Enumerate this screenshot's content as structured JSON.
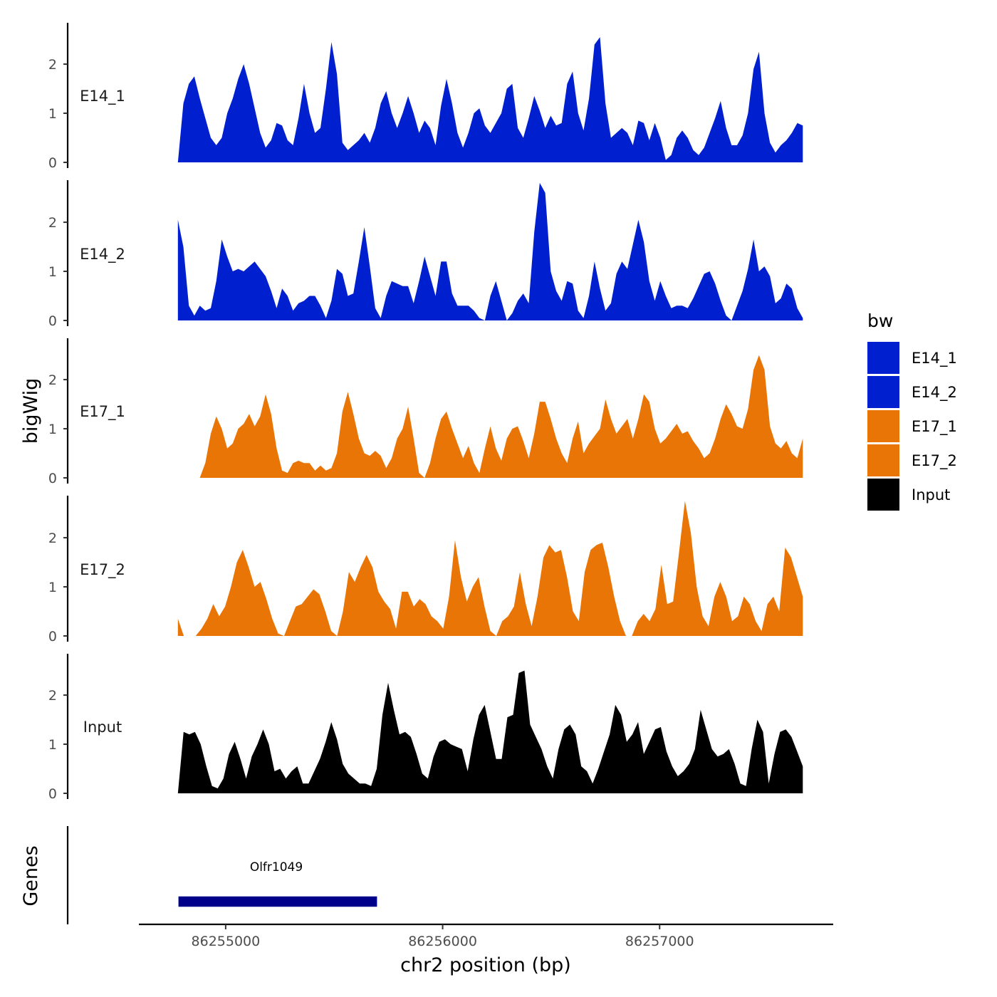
{
  "chart_data": {
    "type": "area",
    "ylabel": "bigWig",
    "xlabel": "chr2 position (bp)",
    "x_range": [
      86254780,
      86257660
    ],
    "xlim": [
      86254600,
      86257800
    ],
    "x_ticks": [
      86255000,
      86256000,
      86257000
    ],
    "x_tick_labels": [
      "86255000",
      "86256000",
      "86257000"
    ],
    "ylim": [
      0,
      2.9
    ],
    "y_ticks": [
      0,
      1,
      2
    ],
    "y_tick_labels": [
      "0",
      "1",
      "2"
    ],
    "legend": {
      "title": "bw",
      "position": "right",
      "entries": [
        {
          "label": "E14_1",
          "color": "#0020D0"
        },
        {
          "label": "E14_2",
          "color": "#0020D0"
        },
        {
          "label": "E17_1",
          "color": "#E87505"
        },
        {
          "label": "E17_2",
          "color": "#E87505"
        },
        {
          "label": "Input",
          "color": "#000000"
        }
      ]
    },
    "series": [
      {
        "name": "E14_1",
        "color": "#0020D0",
        "values": [
          0,
          1.2,
          1.6,
          1.75,
          1.3,
          0.9,
          0.5,
          0.35,
          0.5,
          1.0,
          1.3,
          1.7,
          2.0,
          1.6,
          1.1,
          0.6,
          0.3,
          0.45,
          0.8,
          0.75,
          0.45,
          0.35,
          0.9,
          1.6,
          1.0,
          0.6,
          0.7,
          1.5,
          2.45,
          1.8,
          0.4,
          0.25,
          0.35,
          0.45,
          0.6,
          0.4,
          0.7,
          1.2,
          1.45,
          1.0,
          0.7,
          1.0,
          1.35,
          1.0,
          0.6,
          0.85,
          0.7,
          0.35,
          1.15,
          1.7,
          1.2,
          0.6,
          0.3,
          0.6,
          1.0,
          1.1,
          0.75,
          0.6,
          0.8,
          1.0,
          1.5,
          1.6,
          0.7,
          0.5,
          0.9,
          1.35,
          1.05,
          0.7,
          0.95,
          0.75,
          0.8,
          1.6,
          1.85,
          1.0,
          0.65,
          1.3,
          2.4,
          2.55,
          1.2,
          0.5,
          0.6,
          0.7,
          0.6,
          0.35,
          0.85,
          0.8,
          0.45,
          0.8,
          0.5,
          0.05,
          0.15,
          0.5,
          0.65,
          0.5,
          0.25,
          0.15,
          0.3,
          0.6,
          0.9,
          1.25,
          0.7,
          0.35,
          0.35,
          0.55,
          1.0,
          1.9,
          2.25,
          1.0,
          0.4,
          0.2,
          0.35,
          0.45,
          0.6,
          0.8,
          0.75
        ]
      },
      {
        "name": "E14_2",
        "color": "#0020D0",
        "values": [
          2.05,
          1.5,
          0.3,
          0.1,
          0.3,
          0.2,
          0.25,
          0.8,
          1.65,
          1.3,
          1.0,
          1.05,
          1.0,
          1.1,
          1.2,
          1.05,
          0.9,
          0.6,
          0.25,
          0.65,
          0.5,
          0.2,
          0.35,
          0.4,
          0.5,
          0.5,
          0.3,
          0.05,
          0.4,
          1.05,
          0.95,
          0.5,
          0.55,
          1.2,
          1.9,
          1.1,
          0.25,
          0.05,
          0.5,
          0.8,
          0.75,
          0.7,
          0.7,
          0.35,
          0.8,
          1.3,
          0.9,
          0.5,
          1.2,
          1.2,
          0.55,
          0.3,
          0.3,
          0.3,
          0.2,
          0.05,
          0,
          0.5,
          0.8,
          0.4,
          0,
          0.15,
          0.4,
          0.55,
          0.35,
          1.8,
          2.8,
          2.6,
          1.0,
          0.6,
          0.4,
          0.8,
          0.75,
          0.2,
          0.05,
          0.5,
          1.2,
          0.65,
          0.2,
          0.35,
          0.95,
          1.2,
          1.05,
          1.55,
          2.05,
          1.6,
          0.8,
          0.4,
          0.8,
          0.5,
          0.25,
          0.3,
          0.3,
          0.25,
          0.45,
          0.7,
          0.95,
          1.0,
          0.75,
          0.4,
          0.1,
          0,
          0.3,
          0.6,
          1.05,
          1.65,
          1.0,
          1.1,
          0.9,
          0.35,
          0.45,
          0.75,
          0.65,
          0.25,
          0.05
        ]
      },
      {
        "name": "E17_1",
        "color": "#E87505",
        "values": [
          0,
          0,
          0,
          0,
          0,
          0.3,
          0.9,
          1.25,
          1.0,
          0.6,
          0.7,
          1.0,
          1.1,
          1.3,
          1.05,
          1.25,
          1.7,
          1.3,
          0.6,
          0.15,
          0.1,
          0.3,
          0.35,
          0.3,
          0.3,
          0.15,
          0.25,
          0.15,
          0.2,
          0.5,
          1.35,
          1.75,
          1.3,
          0.8,
          0.5,
          0.45,
          0.55,
          0.45,
          0.2,
          0.4,
          0.8,
          1.0,
          1.45,
          0.8,
          0.1,
          0,
          0.3,
          0.8,
          1.2,
          1.35,
          1.0,
          0.7,
          0.4,
          0.65,
          0.3,
          0.1,
          0.6,
          1.05,
          0.6,
          0.35,
          0.8,
          1.0,
          1.05,
          0.75,
          0.4,
          0.9,
          1.55,
          1.55,
          1.2,
          0.8,
          0.5,
          0.3,
          0.8,
          1.15,
          0.5,
          0.7,
          0.85,
          1.0,
          1.6,
          1.2,
          0.9,
          1.05,
          1.2,
          0.8,
          1.2,
          1.7,
          1.55,
          1.0,
          0.7,
          0.8,
          0.95,
          1.1,
          0.9,
          0.95,
          0.75,
          0.6,
          0.4,
          0.5,
          0.8,
          1.2,
          1.5,
          1.3,
          1.05,
          1.0,
          1.4,
          2.2,
          2.5,
          2.2,
          1.05,
          0.7,
          0.6,
          0.75,
          0.5,
          0.4,
          0.8
        ]
      },
      {
        "name": "E17_2",
        "color": "#E87505",
        "values": [
          0.35,
          0,
          0,
          0,
          0.15,
          0.35,
          0.65,
          0.4,
          0.6,
          1.0,
          1.5,
          1.75,
          1.4,
          1.0,
          1.1,
          0.75,
          0.35,
          0.05,
          0,
          0.3,
          0.6,
          0.65,
          0.8,
          0.95,
          0.85,
          0.5,
          0.1,
          0,
          0.5,
          1.3,
          1.1,
          1.4,
          1.65,
          1.4,
          0.9,
          0.7,
          0.55,
          0.15,
          0.9,
          0.9,
          0.6,
          0.75,
          0.65,
          0.4,
          0.3,
          0.15,
          0.8,
          1.95,
          1.2,
          0.7,
          1.0,
          1.2,
          0.6,
          0.1,
          0,
          0.3,
          0.4,
          0.6,
          1.3,
          0.65,
          0.2,
          0.8,
          1.6,
          1.85,
          1.7,
          1.75,
          1.2,
          0.5,
          0.3,
          1.3,
          1.75,
          1.85,
          1.9,
          1.4,
          0.8,
          0.3,
          0,
          0,
          0.3,
          0.45,
          0.3,
          0.55,
          1.45,
          0.65,
          0.7,
          1.7,
          2.75,
          2.1,
          1.0,
          0.4,
          0.2,
          0.8,
          1.1,
          0.8,
          0.3,
          0.4,
          0.8,
          0.65,
          0.3,
          0.1,
          0.65,
          0.8,
          0.5,
          1.8,
          1.6,
          1.2,
          0.8
        ]
      },
      {
        "name": "Input",
        "color": "#000000",
        "values": [
          0,
          1.25,
          1.2,
          1.25,
          1.0,
          0.55,
          0.15,
          0.1,
          0.3,
          0.8,
          1.05,
          0.7,
          0.3,
          0.75,
          1.0,
          1.3,
          1.0,
          0.45,
          0.5,
          0.3,
          0.45,
          0.55,
          0.2,
          0.2,
          0.45,
          0.7,
          1.05,
          1.45,
          1.1,
          0.6,
          0.4,
          0.3,
          0.2,
          0.2,
          0.15,
          0.5,
          1.6,
          2.25,
          1.7,
          1.2,
          1.25,
          1.15,
          0.8,
          0.4,
          0.3,
          0.75,
          1.05,
          1.1,
          1.0,
          0.95,
          0.9,
          0.45,
          1.1,
          1.6,
          1.8,
          1.25,
          0.7,
          0.7,
          1.55,
          1.6,
          2.45,
          2.5,
          1.4,
          1.15,
          0.9,
          0.55,
          0.3,
          0.9,
          1.3,
          1.4,
          1.2,
          0.55,
          0.45,
          0.2,
          0.5,
          0.85,
          1.2,
          1.8,
          1.6,
          1.05,
          1.2,
          1.45,
          0.8,
          1.05,
          1.3,
          1.35,
          0.85,
          0.55,
          0.35,
          0.45,
          0.6,
          0.9,
          1.7,
          1.3,
          0.9,
          0.75,
          0.8,
          0.9,
          0.6,
          0.2,
          0.15,
          0.9,
          1.5,
          1.25,
          0.2,
          0.8,
          1.25,
          1.3,
          1.15,
          0.85,
          0.55
        ]
      }
    ],
    "genes": {
      "title": "Genes",
      "items": [
        {
          "name": "Olfr1049",
          "start": 86254780,
          "end": 86255700,
          "color": "#00008B"
        }
      ]
    }
  }
}
